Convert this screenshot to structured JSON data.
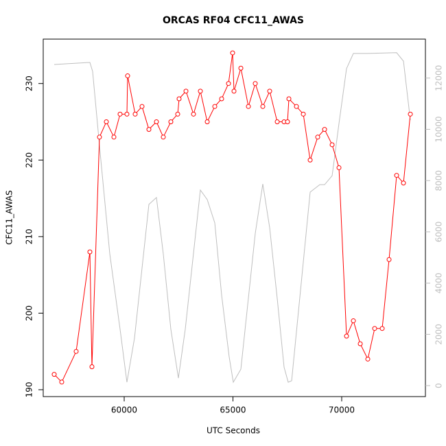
{
  "chart_data": {
    "type": "line",
    "title": "ORCAS RF04 CFC11_AWAS",
    "xlabel": "UTC Seconds",
    "ylabel": "CFC11_AWAS",
    "xlim": [
      56278,
      73849
    ],
    "ylim": [
      189.1,
      235.8
    ],
    "y2lim": [
      -428,
      13520
    ],
    "xticks": [
      60000,
      65000,
      70000
    ],
    "yticks": [
      190,
      200,
      210,
      220,
      230
    ],
    "y2ticks": [
      0,
      2000,
      4000,
      6000,
      8000,
      10000,
      12000
    ],
    "series": [
      {
        "color": "#bebebe",
        "axis": "y2",
        "x": [
          56782,
          58423,
          58549,
          58864,
          59338,
          59811,
          60126,
          60473,
          61136,
          61483,
          61798,
          62145,
          62492,
          62808,
          63502,
          63818,
          64165,
          64480,
          64827,
          65017,
          65364,
          66026,
          66373,
          66689,
          67036,
          67351,
          67541,
          67699,
          68550,
          68992,
          69213,
          69560,
          69875,
          70222,
          70537,
          71200,
          72525,
          72840,
          73156
        ],
        "values": [
          12530,
          12610,
          12260,
          9370,
          5140,
          2200,
          134,
          1850,
          7070,
          7340,
          5140,
          2200,
          295,
          2200,
          7630,
          7260,
          6350,
          3530,
          1120,
          134,
          640,
          5940,
          7870,
          6160,
          3400,
          720,
          134,
          190,
          7550,
          7840,
          7840,
          8190,
          10230,
          12370,
          12960,
          12960,
          12990,
          12660,
          10360
        ]
      },
      {
        "color": "#ff0000",
        "markers": true,
        "x": [
          56782,
          57129,
          57792,
          58423,
          58517,
          58864,
          59180,
          59527,
          59811,
          60126,
          60158,
          60505,
          60820,
          61136,
          61483,
          61798,
          62145,
          62461,
          62524,
          62840,
          63187,
          63502,
          63818,
          64165,
          64480,
          64796,
          64985,
          65048,
          65364,
          65711,
          66026,
          66373,
          66689,
          67036,
          67351,
          67509,
          67572,
          67919,
          68235,
          68550,
          68897,
          69213,
          69560,
          69875,
          70222,
          70537,
          70853,
          71200,
          71515,
          71862,
          72178,
          72525,
          72840,
          73156
        ],
        "values": [
          192,
          191,
          195,
          208,
          193,
          223,
          225,
          223,
          226,
          226,
          231,
          226,
          227,
          224,
          225,
          223,
          225,
          226,
          228,
          229,
          226,
          229,
          225,
          227,
          228,
          230,
          234,
          229,
          232,
          227,
          230,
          227,
          229,
          225,
          225,
          225,
          228,
          227,
          226,
          220,
          223,
          224,
          222,
          219,
          197,
          199,
          196,
          194,
          198,
          198,
          207,
          218,
          217,
          226
        ]
      }
    ]
  }
}
